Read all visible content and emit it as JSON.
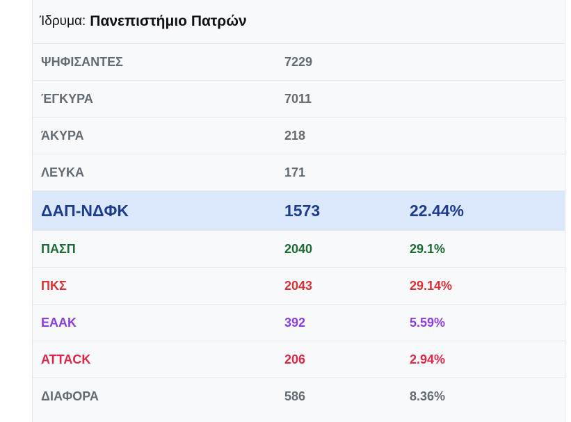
{
  "institution": {
    "label": "Ίδρυμα:",
    "name": "Πανεπιστήμιο Πατρών"
  },
  "stats": [
    {
      "label": "ΨΗΦΙΣΑΝΤΕΣ",
      "value": "7229"
    },
    {
      "label": "ΈΓΚΥΡΑ",
      "value": "7011"
    },
    {
      "label": "ΆΚΥΡΑ",
      "value": "218"
    },
    {
      "label": "ΛΕΥΚΑ",
      "value": "171"
    }
  ],
  "results": [
    {
      "party": "ΔΑΠ-ΝΔΦΚ",
      "votes": "1573",
      "percent": "22.44%",
      "color": "#1d3c8f"
    },
    {
      "party": "ΠΑΣΠ",
      "votes": "2040",
      "percent": "29.1%",
      "color": "#1b6b34"
    },
    {
      "party": "ΠΚΣ",
      "votes": "2043",
      "percent": "29.14%",
      "color": "#d93236"
    },
    {
      "party": "ΕΑΑΚ",
      "votes": "392",
      "percent": "5.59%",
      "color": "#8b3ee0"
    },
    {
      "party": "ATTACK",
      "votes": "206",
      "percent": "2.94%",
      "color": "#dc2547"
    },
    {
      "party": "ΔΙΑΦΟΡΑ",
      "votes": "586",
      "percent": "8.36%",
      "color": "#636b73"
    }
  ]
}
